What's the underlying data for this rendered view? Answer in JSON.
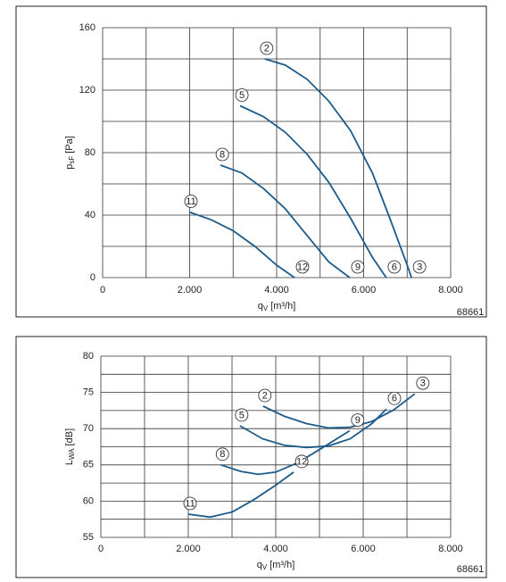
{
  "chart_data": [
    {
      "type": "line",
      "xlabel": {
        "main": "q",
        "sub": "V",
        "unit": "[m³/h]"
      },
      "ylabel": {
        "main": "p",
        "sub": "sF",
        "unit": "[Pa]"
      },
      "code": "68661",
      "xlim": [
        0,
        8000
      ],
      "xticks": [
        0,
        {
          "value": 2000,
          "label": "2.000"
        },
        {
          "value": 4000,
          "label": "4.000"
        },
        {
          "value": 6000,
          "label": "6.000"
        },
        {
          "value": 8000,
          "label": "8.000"
        }
      ],
      "xgrid_minor": [
        1000,
        3000,
        5000,
        7000
      ],
      "ylim": [
        0,
        160
      ],
      "yticks": [
        0,
        40,
        80,
        120,
        160
      ],
      "ygrid_minor": [
        20,
        60,
        100,
        140
      ],
      "grid": true,
      "series": [
        {
          "name": "2",
          "end_label": "3",
          "color": "#1c5b8a",
          "x": [
            3730,
            4200,
            4700,
            5200,
            5700,
            6200,
            6600,
            7000,
            7100
          ],
          "values": [
            140,
            136,
            127,
            113,
            94,
            67,
            38,
            8,
            0
          ]
        },
        {
          "name": "5",
          "end_label": "6",
          "color": "#1c5b8a",
          "x": [
            3160,
            3700,
            4200,
            4700,
            5200,
            5700,
            6200,
            6520
          ],
          "values": [
            110,
            103,
            93,
            79,
            61,
            38,
            13,
            0
          ]
        },
        {
          "name": "8",
          "end_label": "9",
          "color": "#1c5b8a",
          "x": [
            2710,
            3200,
            3700,
            4200,
            4700,
            5200,
            5680
          ],
          "values": [
            72,
            67,
            57,
            44,
            27,
            10,
            0
          ]
        },
        {
          "name": "11",
          "end_label": "12",
          "color": "#1c5b8a",
          "x": [
            1990,
            2500,
            3000,
            3500,
            4000,
            4410
          ],
          "values": [
            42,
            37,
            30,
            20,
            8,
            0
          ]
        }
      ]
    },
    {
      "type": "line",
      "xlabel": {
        "main": "q",
        "sub": "V",
        "unit": "[m³/h]"
      },
      "ylabel": {
        "main": "L",
        "sub": "WA",
        "unit": "[dB]"
      },
      "code": "68661",
      "xlim": [
        0,
        8000
      ],
      "xticks": [
        0,
        {
          "value": 2000,
          "label": "2.000"
        },
        {
          "value": 4000,
          "label": "4.000"
        },
        {
          "value": 6000,
          "label": "6.000"
        },
        {
          "value": 8000,
          "label": "8.000"
        }
      ],
      "xgrid_minor": [
        1000,
        3000,
        5000,
        7000
      ],
      "ylim": [
        55,
        80
      ],
      "yticks": [
        55,
        60,
        65,
        70,
        75,
        80
      ],
      "ygrid_minor": [
        57.5,
        62.5,
        67.5,
        72.5,
        77.5
      ],
      "grid": true,
      "series": [
        {
          "name": "2",
          "end_label": "3",
          "color": "#1c5b8a",
          "x": [
            3710,
            4200,
            4700,
            5200,
            5700,
            6200,
            6700,
            7180
          ],
          "values": [
            73.1,
            71.7,
            70.7,
            70.1,
            70.2,
            71.0,
            72.6,
            74.8
          ]
        },
        {
          "name": "5",
          "end_label": "6",
          "color": "#1c5b8a",
          "x": [
            3180,
            3700,
            4200,
            4700,
            5200,
            5700,
            6200,
            6530
          ],
          "values": [
            70.4,
            68.6,
            67.7,
            67.4,
            67.6,
            68.6,
            70.7,
            72.7
          ]
        },
        {
          "name": "8",
          "end_label": "9",
          "color": "#1c5b8a",
          "x": [
            2740,
            3200,
            3600,
            4000,
            4500,
            5000,
            5690
          ],
          "values": [
            65.0,
            64.1,
            63.7,
            64.0,
            65.3,
            67.1,
            69.7
          ]
        },
        {
          "name": "11",
          "end_label": "12",
          "color": "#1c5b8a",
          "x": [
            2000,
            2500,
            3000,
            3500,
            4000,
            4410
          ],
          "values": [
            58.2,
            57.8,
            58.5,
            60.2,
            62.2,
            64.0
          ]
        }
      ]
    }
  ]
}
